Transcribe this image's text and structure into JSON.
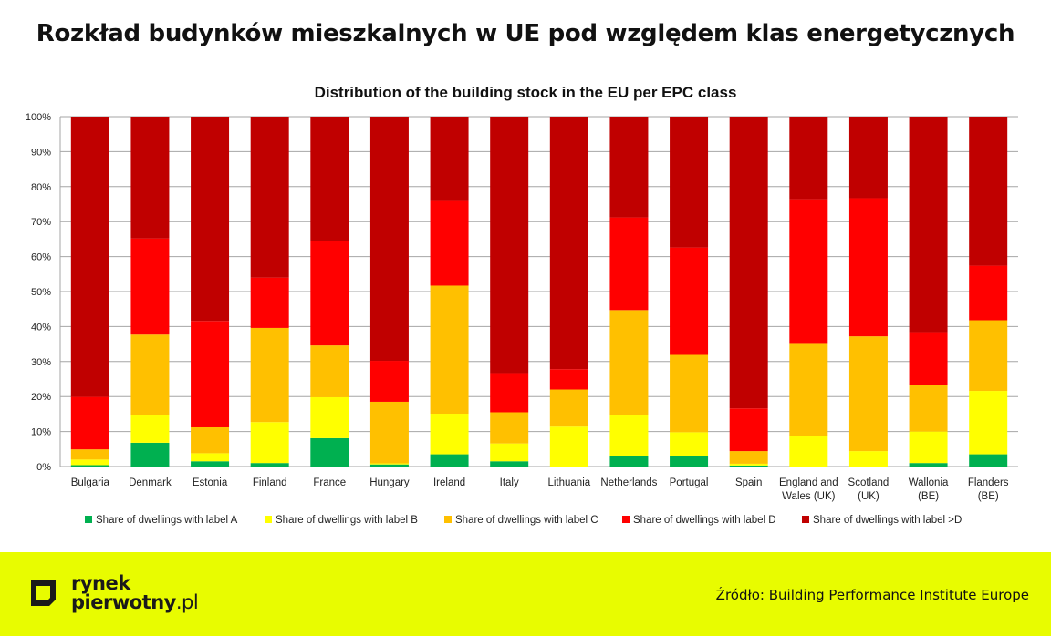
{
  "title": "Rozkład budynków mieszkalnych w UE pod względem klas energetycznych",
  "chart_data": {
    "type": "bar",
    "stacked": true,
    "title": "Distribution of the building stock in the EU per EPC class",
    "xlabel": "",
    "ylabel": "",
    "ylim": [
      0,
      100
    ],
    "yticks": [
      "0%",
      "10%",
      "20%",
      "30%",
      "40%",
      "50%",
      "60%",
      "70%",
      "80%",
      "90%",
      "100%"
    ],
    "grid": true,
    "legend_position": "bottom",
    "categories": [
      [
        "Bulgaria"
      ],
      [
        "Denmark"
      ],
      [
        "Estonia"
      ],
      [
        "Finland"
      ],
      [
        "France"
      ],
      [
        "Hungary"
      ],
      [
        "Ireland"
      ],
      [
        "Italy"
      ],
      [
        "Lithuania"
      ],
      [
        "Netherlands"
      ],
      [
        "Portugal"
      ],
      [
        "Spain"
      ],
      [
        "England and",
        "Wales (UK)"
      ],
      [
        "Scotland",
        "(UK)"
      ],
      [
        "Wallonia",
        "(BE)"
      ],
      [
        "Flanders",
        "(BE)"
      ]
    ],
    "series": [
      {
        "name": "Share of dwellings with label A",
        "color": "#00b050",
        "values": [
          0.4,
          6.8,
          1.5,
          1.0,
          8.1,
          0.6,
          3.5,
          1.5,
          0,
          3.0,
          3.0,
          0.3,
          0,
          0,
          1.0,
          3.5
        ]
      },
      {
        "name": "Share of dwellings with label B",
        "color": "#ffff00",
        "values": [
          1.6,
          8.0,
          2.3,
          11.7,
          11.7,
          0.3,
          11.6,
          5.1,
          11.4,
          11.8,
          6.8,
          0.5,
          8.6,
          4.4,
          9.0,
          18.1
        ]
      },
      {
        "name": "Share of dwellings with label C",
        "color": "#ffc000",
        "values": [
          2.9,
          22.9,
          7.4,
          26.9,
          14.8,
          17.6,
          36.6,
          8.9,
          10.6,
          29.9,
          22.1,
          3.6,
          26.7,
          32.8,
          13.2,
          20.2
        ]
      },
      {
        "name": "Share of dwellings with label D",
        "color": "#ff0000",
        "values": [
          15.0,
          27.5,
          30.4,
          14.4,
          29.8,
          11.7,
          24.2,
          11.2,
          5.8,
          26.5,
          30.7,
          12.2,
          41.1,
          39.5,
          15.2,
          15.6
        ]
      },
      {
        "name": "Share of dwellings with label >D",
        "color": "#c00000",
        "values": [
          80.1,
          34.8,
          58.4,
          46.0,
          35.6,
          69.8,
          24.1,
          73.3,
          72.2,
          28.8,
          37.4,
          83.4,
          23.6,
          23.3,
          61.6,
          42.6
        ]
      }
    ]
  },
  "footer": {
    "logo_line1": "rynek",
    "logo_line2": "pierwotny",
    "logo_suffix": ".pl",
    "source": "Źródło: Building Performance Institute Europe",
    "background": "#e8fc00"
  }
}
